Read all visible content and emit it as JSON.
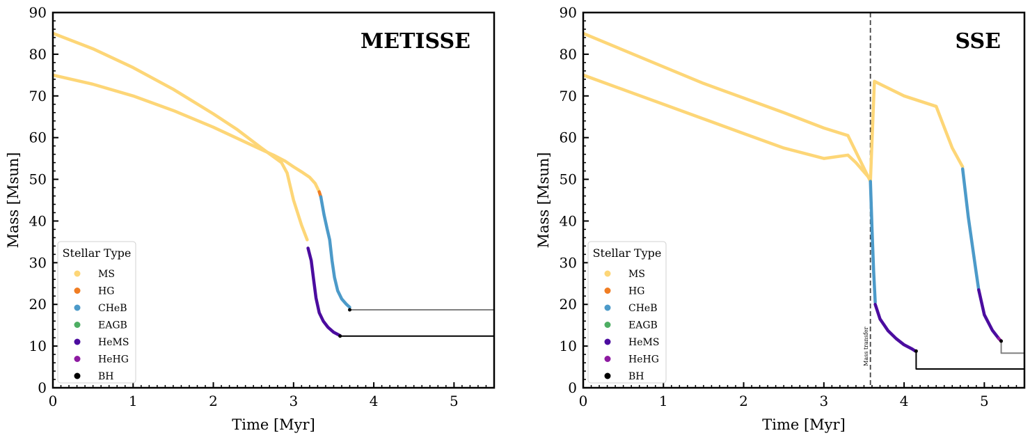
{
  "chart_data": [
    {
      "type": "line",
      "title": "METISSE",
      "xlabel": "Time [Myr]",
      "ylabel": "Mass [Msun]",
      "xlim": [
        0,
        5.5
      ],
      "ylim": [
        0,
        90
      ],
      "xticks": [
        0,
        1,
        2,
        3,
        4,
        5
      ],
      "yticks": [
        0,
        10,
        20,
        30,
        40,
        50,
        60,
        70,
        80,
        90
      ],
      "grid": false,
      "legend_title": "Stellar Type",
      "legend_position": "lower-left",
      "legend": [
        {
          "label": "MS",
          "color": "#fdd677"
        },
        {
          "label": "HG",
          "color": "#f07d23"
        },
        {
          "label": "CHeB",
          "color": "#4c9ac9"
        },
        {
          "label": "EAGB",
          "color": "#4eae63"
        },
        {
          "label": "HeMS",
          "color": "#4b0c9f"
        },
        {
          "label": "HeHG",
          "color": "#8d1aa1"
        },
        {
          "label": "BH",
          "color": "#000000"
        }
      ],
      "series": [
        {
          "stellar_type": "MS",
          "color": "#fdd677",
          "x": [
            0,
            0.5,
            1.0,
            1.5,
            2.0,
            2.3,
            2.6,
            2.85,
            2.92,
            3.0,
            3.1,
            3.17
          ],
          "y": [
            85,
            81.3,
            76.8,
            71.6,
            65.7,
            61.9,
            57.5,
            54.0,
            51.5,
            45.0,
            39.0,
            35.5
          ]
        },
        {
          "stellar_type": "HeMS",
          "color": "#4b0c9f",
          "x": [
            3.18,
            3.22,
            3.25,
            3.28,
            3.32,
            3.37,
            3.43,
            3.5,
            3.55,
            3.58
          ],
          "y": [
            33.5,
            30.5,
            26.0,
            21.5,
            18.0,
            16.0,
            14.5,
            13.3,
            12.8,
            12.5
          ]
        },
        {
          "stellar_type": "BH",
          "color": "#000000",
          "x": [
            3.58,
            5.5
          ],
          "y": [
            12.4,
            12.4
          ]
        },
        {
          "stellar_type": "MS",
          "color": "#fdd677",
          "x": [
            0,
            0.5,
            1.0,
            1.5,
            2.0,
            2.5,
            2.75,
            2.9,
            3.0,
            3.1,
            3.2,
            3.27,
            3.32
          ],
          "y": [
            75,
            72.8,
            70.0,
            66.5,
            62.5,
            58.0,
            55.8,
            54.3,
            53.0,
            51.8,
            50.5,
            49.0,
            47.0
          ]
        },
        {
          "stellar_type": "HG",
          "color": "#f07d23",
          "x": [
            3.32,
            3.34
          ],
          "y": [
            47.0,
            45.8
          ]
        },
        {
          "stellar_type": "CHeB",
          "color": "#4c9ac9",
          "x": [
            3.34,
            3.38,
            3.42,
            3.45,
            3.48,
            3.51,
            3.55,
            3.6,
            3.66,
            3.7
          ],
          "y": [
            45.8,
            41.5,
            38.0,
            35.5,
            30.5,
            26.5,
            23.3,
            21.3,
            20.0,
            19.3
          ]
        },
        {
          "stellar_type": "BH",
          "color": "#808080",
          "x": [
            3.7,
            5.5
          ],
          "y": [
            18.7,
            18.7
          ]
        }
      ],
      "annotations": []
    },
    {
      "type": "line",
      "title": "SSE",
      "xlabel": "Time [Myr]",
      "ylabel": "Mass [Msun]",
      "xlim": [
        0,
        5.5
      ],
      "ylim": [
        0,
        90
      ],
      "xticks": [
        0,
        1,
        2,
        3,
        4,
        5
      ],
      "yticks": [
        0,
        10,
        20,
        30,
        40,
        50,
        60,
        70,
        80,
        90
      ],
      "grid": false,
      "legend_title": "Stellar Type",
      "legend_position": "lower-left",
      "legend": [
        {
          "label": "MS",
          "color": "#fdd677"
        },
        {
          "label": "HG",
          "color": "#f07d23"
        },
        {
          "label": "CHeB",
          "color": "#4c9ac9"
        },
        {
          "label": "EAGB",
          "color": "#4eae63"
        },
        {
          "label": "HeMS",
          "color": "#4b0c9f"
        },
        {
          "label": "HeHG",
          "color": "#8d1aa1"
        },
        {
          "label": "BH",
          "color": "#000000"
        }
      ],
      "series": [
        {
          "stellar_type": "MS",
          "color": "#fdd677",
          "x": [
            0,
            0.5,
            1.0,
            1.5,
            2.0,
            2.5,
            3.0,
            3.3,
            3.58
          ],
          "y": [
            85,
            81.0,
            77.0,
            73.0,
            69.5,
            66.0,
            62.3,
            60.5,
            49.5
          ]
        },
        {
          "stellar_type": "MS",
          "color": "#fdd677",
          "x": [
            3.58,
            3.63,
            4.0,
            4.4,
            4.5,
            4.6,
            4.7,
            4.73
          ],
          "y": [
            49.5,
            73.5,
            70.0,
            67.5,
            62.5,
            57.5,
            54.0,
            53.0
          ]
        },
        {
          "stellar_type": "CHeB",
          "color": "#4c9ac9",
          "x": [
            4.73,
            4.8,
            4.9,
            4.93
          ],
          "y": [
            52.5,
            41.0,
            27.5,
            23.5
          ]
        },
        {
          "stellar_type": "HeMS",
          "color": "#4b0c9f",
          "x": [
            4.93,
            5.0,
            5.1,
            5.18
          ],
          "y": [
            23.5,
            17.5,
            13.8,
            11.8
          ]
        },
        {
          "stellar_type": "HeHG",
          "color": "#8d1aa1",
          "x": [
            5.18,
            5.21
          ],
          "y": [
            11.8,
            11.2
          ]
        },
        {
          "stellar_type": "BH",
          "color": "#808080",
          "x": [
            5.21,
            5.21,
            5.5
          ],
          "y": [
            11.2,
            8.3,
            8.3
          ]
        },
        {
          "stellar_type": "MS",
          "color": "#fdd677",
          "x": [
            0,
            0.5,
            1.0,
            1.5,
            2.0,
            2.5,
            3.0,
            3.3,
            3.4,
            3.58
          ],
          "y": [
            75,
            71.5,
            68.0,
            64.5,
            61.0,
            57.5,
            55.0,
            55.8,
            54.0,
            50.0
          ]
        },
        {
          "stellar_type": "CHeB",
          "color": "#4c9ac9",
          "x": [
            3.58,
            3.6,
            3.62,
            3.64
          ],
          "y": [
            49.5,
            38.0,
            28.0,
            20.5
          ]
        },
        {
          "stellar_type": "HeMS",
          "color": "#4b0c9f",
          "x": [
            3.64,
            3.7,
            3.8,
            3.9,
            4.0,
            4.1,
            4.14
          ],
          "y": [
            20.0,
            16.5,
            13.7,
            11.8,
            10.3,
            9.3,
            8.8
          ]
        },
        {
          "stellar_type": "BH",
          "color": "#000000",
          "x": [
            4.15,
            4.15,
            5.5
          ],
          "y": [
            8.8,
            4.5,
            4.5
          ]
        }
      ],
      "vline": {
        "x": 3.58,
        "color": "#444444"
      },
      "annotations": [
        {
          "text": "Mass transfer",
          "x": 3.55,
          "y": 5.2
        }
      ]
    }
  ]
}
